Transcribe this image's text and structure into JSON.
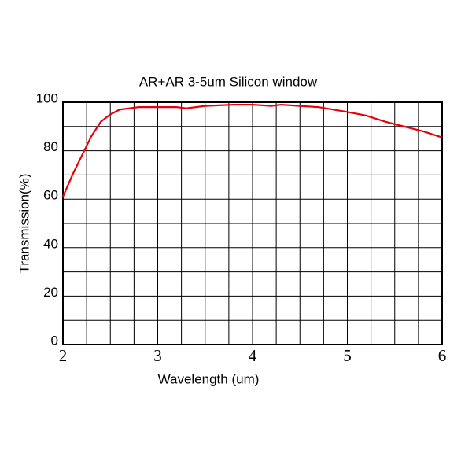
{
  "chart_data": {
    "type": "line",
    "title": "AR+AR 3-5um Silicon window",
    "xlabel": "Wavelength (um)",
    "ylabel": "Transmission(%)",
    "x": [
      2.0,
      2.1,
      2.2,
      2.3,
      2.4,
      2.5,
      2.6,
      2.7,
      2.8,
      3.0,
      3.2,
      3.3,
      3.5,
      3.8,
      4.0,
      4.2,
      4.3,
      4.5,
      4.7,
      5.0,
      5.2,
      5.4,
      5.6,
      5.8,
      6.0
    ],
    "series": [
      {
        "name": "Transmission",
        "color": "#e8000b",
        "values": [
          61,
          70,
          78,
          86,
          92,
          95,
          97,
          97.5,
          98,
          98,
          98,
          97.5,
          98.5,
          99,
          99,
          98.5,
          99,
          98.5,
          98,
          96,
          94.5,
          92,
          90,
          88,
          85.5
        ]
      }
    ],
    "xlim": [
      2,
      6
    ],
    "xticks": [
      2,
      3,
      4,
      5,
      6
    ],
    "minor_xticks": [
      2.25,
      2.5,
      2.75,
      3.25,
      3.5,
      3.75,
      4.25,
      4.5,
      4.75,
      5.25,
      5.5,
      5.75
    ],
    "ylim": [
      0,
      100
    ],
    "yticks": [
      0,
      20,
      40,
      60,
      80,
      100
    ],
    "minor_yticks": [
      10,
      30,
      50,
      70,
      90
    ],
    "grid": true
  }
}
